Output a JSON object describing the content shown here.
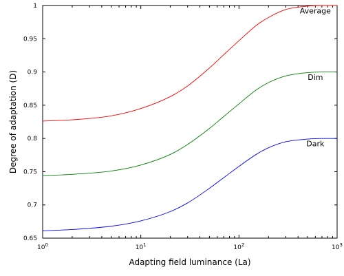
{
  "chart_data": {
    "type": "line",
    "title": "",
    "xlabel": "Adapting field luminance (La)",
    "ylabel": "Degree of adaptation (D)",
    "x_scale": "log",
    "xlim": [
      1,
      1000
    ],
    "ylim": [
      0.65,
      1.0
    ],
    "x_ticks": [
      {
        "value": 1,
        "base": "10",
        "exp": "0"
      },
      {
        "value": 10,
        "base": "10",
        "exp": "1"
      },
      {
        "value": 100,
        "base": "10",
        "exp": "2"
      },
      {
        "value": 1000,
        "base": "10",
        "exp": "3"
      }
    ],
    "y_ticks": [
      {
        "value": 0.65,
        "label": "0.65"
      },
      {
        "value": 0.7,
        "label": "0.7"
      },
      {
        "value": 0.75,
        "label": "0.75"
      },
      {
        "value": 0.8,
        "label": "0.8"
      },
      {
        "value": 0.85,
        "label": "0.85"
      },
      {
        "value": 0.9,
        "label": "0.9"
      },
      {
        "value": 0.95,
        "label": "0.95"
      },
      {
        "value": 1.0,
        "label": "1"
      }
    ],
    "grid": false,
    "x": [
      1,
      2,
      5,
      10,
      20,
      30,
      50,
      70,
      100,
      150,
      200,
      300,
      500,
      700,
      1000
    ],
    "series": [
      {
        "name": "Average",
        "color": "#ff0000",
        "values": [
          0.826,
          0.828,
          0.834,
          0.845,
          0.863,
          0.879,
          0.906,
          0.926,
          0.947,
          0.97,
          0.982,
          0.994,
          0.999,
          1.0,
          1.0
        ]
      },
      {
        "name": "Dim",
        "color": "#007f00",
        "values": [
          0.744,
          0.746,
          0.751,
          0.76,
          0.776,
          0.791,
          0.815,
          0.833,
          0.852,
          0.873,
          0.884,
          0.894,
          0.899,
          0.9,
          0.9
        ]
      },
      {
        "name": "Dark",
        "color": "#0000ff",
        "values": [
          0.661,
          0.663,
          0.668,
          0.676,
          0.69,
          0.703,
          0.725,
          0.741,
          0.758,
          0.776,
          0.786,
          0.795,
          0.799,
          0.8,
          0.8
        ]
      }
    ],
    "annotations": [
      {
        "text": "Average",
        "x": 600,
        "y": 0.988
      },
      {
        "text": "Dim",
        "x": 600,
        "y": 0.888
      },
      {
        "text": "Dark",
        "x": 600,
        "y": 0.788
      }
    ]
  }
}
